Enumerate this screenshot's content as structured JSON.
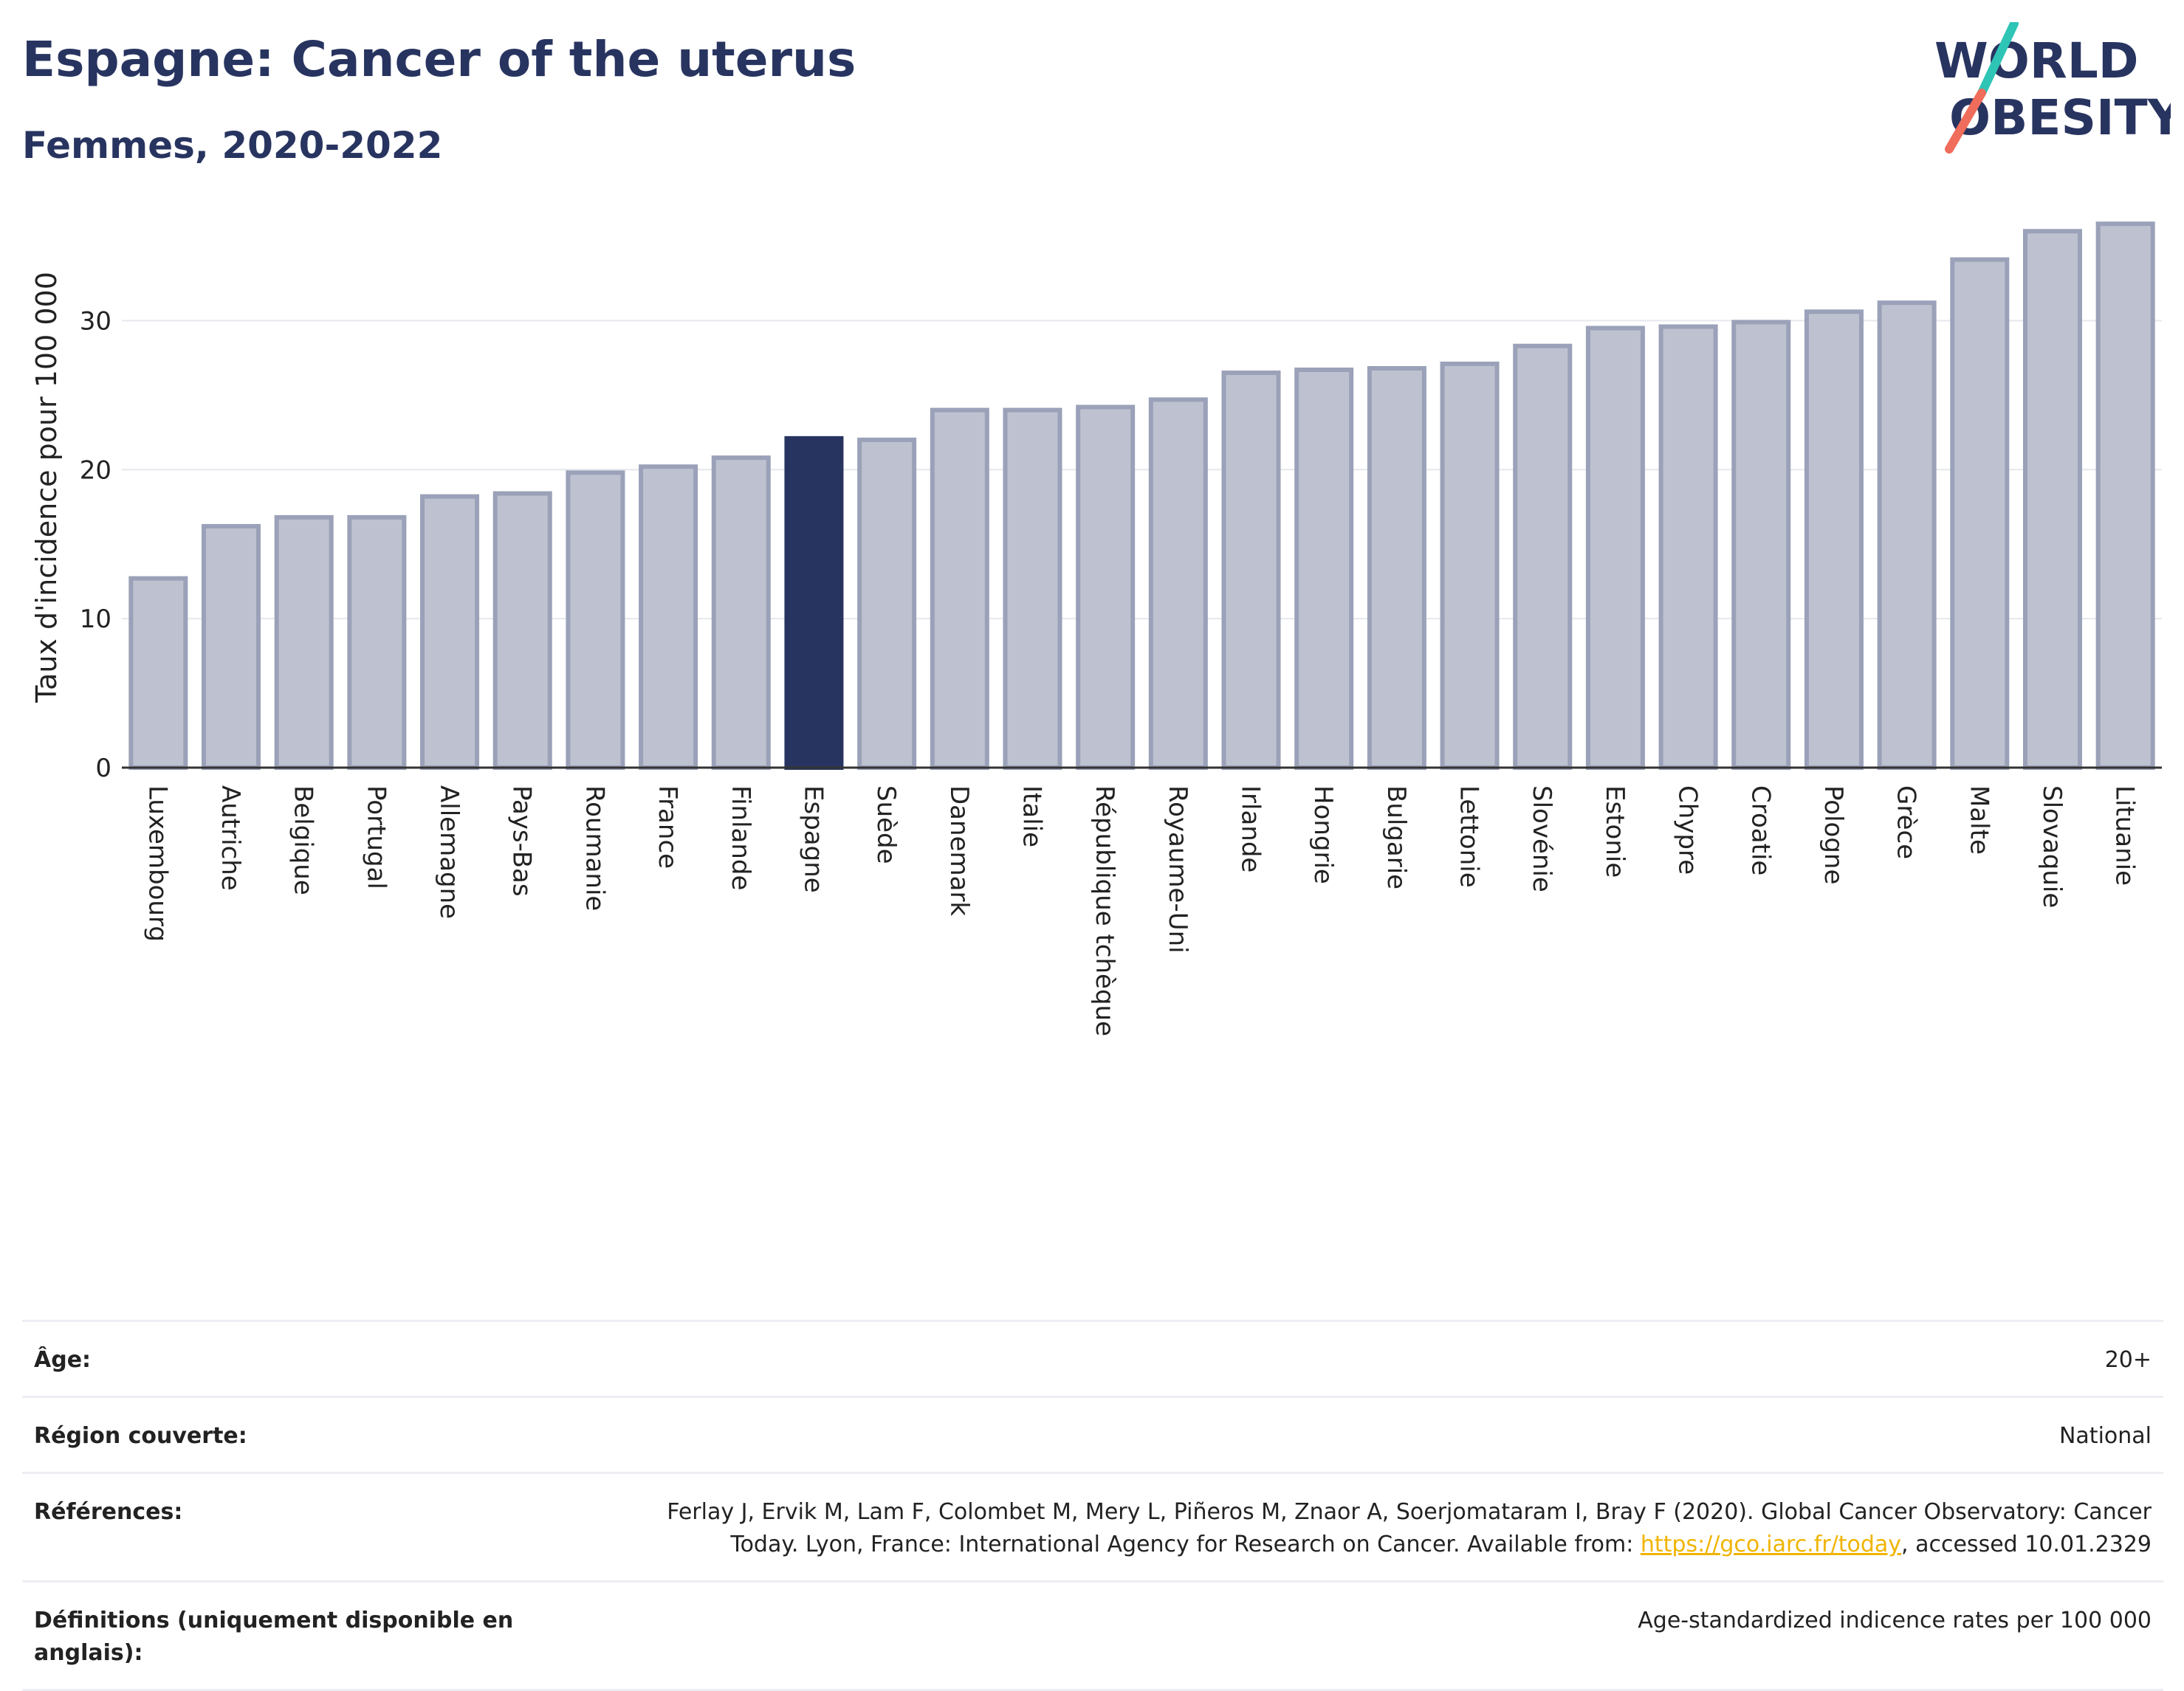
{
  "header": {
    "title": "Espagne: Cancer of the uterus",
    "subtitle": "Femmes, 2020-2022"
  },
  "logo": {
    "line1": "WORLD",
    "line2": "OBESITY",
    "slash_colors": [
      "#2ec4b6",
      "#f06c5b"
    ]
  },
  "chart_data": {
    "type": "bar",
    "title": "Espagne: Cancer of the uterus",
    "subtitle": "Femmes, 2020-2022",
    "ylabel": "Taux d'incidence pour 100 000",
    "xlabel": "",
    "ylim": [
      0,
      37.5
    ],
    "yticks": [
      0,
      10,
      20,
      30
    ],
    "grid": true,
    "highlight": "Espagne",
    "colors": {
      "bar": "#bec2d0",
      "bar_edge": "#9aa1b8",
      "highlight": "#283460"
    },
    "categories": [
      "Luxembourg",
      "Autriche",
      "Belgique",
      "Portugal",
      "Allemagne",
      "Pays-Bas",
      "Roumanie",
      "France",
      "Finlande",
      "Espagne",
      "Suède",
      "Danemark",
      "Italie",
      "République tchèque",
      "Royaume-Uni",
      "Irlande",
      "Hongrie",
      "Bulgarie",
      "Lettonie",
      "Slovénie",
      "Estonie",
      "Chypre",
      "Croatie",
      "Pologne",
      "Grèce",
      "Malte",
      "Slovaquie",
      "Lituanie"
    ],
    "values": [
      12.7,
      16.2,
      16.8,
      16.8,
      18.2,
      18.4,
      19.8,
      20.2,
      20.8,
      22.1,
      22.0,
      24.0,
      24.0,
      24.2,
      24.7,
      26.5,
      26.7,
      26.8,
      27.1,
      28.3,
      29.5,
      29.6,
      29.9,
      30.6,
      31.2,
      34.1,
      36.0,
      36.5
    ]
  },
  "meta": {
    "age_label": "Âge:",
    "age_value": "20+",
    "region_label": "Région couverte:",
    "region_value": "National",
    "references_label": "Références:",
    "references_text_1": "Ferlay J, Ervik M, Lam F, Colombet M, Mery L, Piñeros M, Znaor A, Soerjomataram I, Bray F (2020). Global Cancer Observatory: Cancer Today. Lyon, France: International Agency for Research on Cancer. Available from: ",
    "references_link": "https://gco.iarc.fr/today",
    "references_text_2": ", accessed 10.01.2329",
    "definitions_label": "Définitions (uniquement disponible en anglais):",
    "definitions_value": "Age-standardized indicence rates per 100 000"
  }
}
